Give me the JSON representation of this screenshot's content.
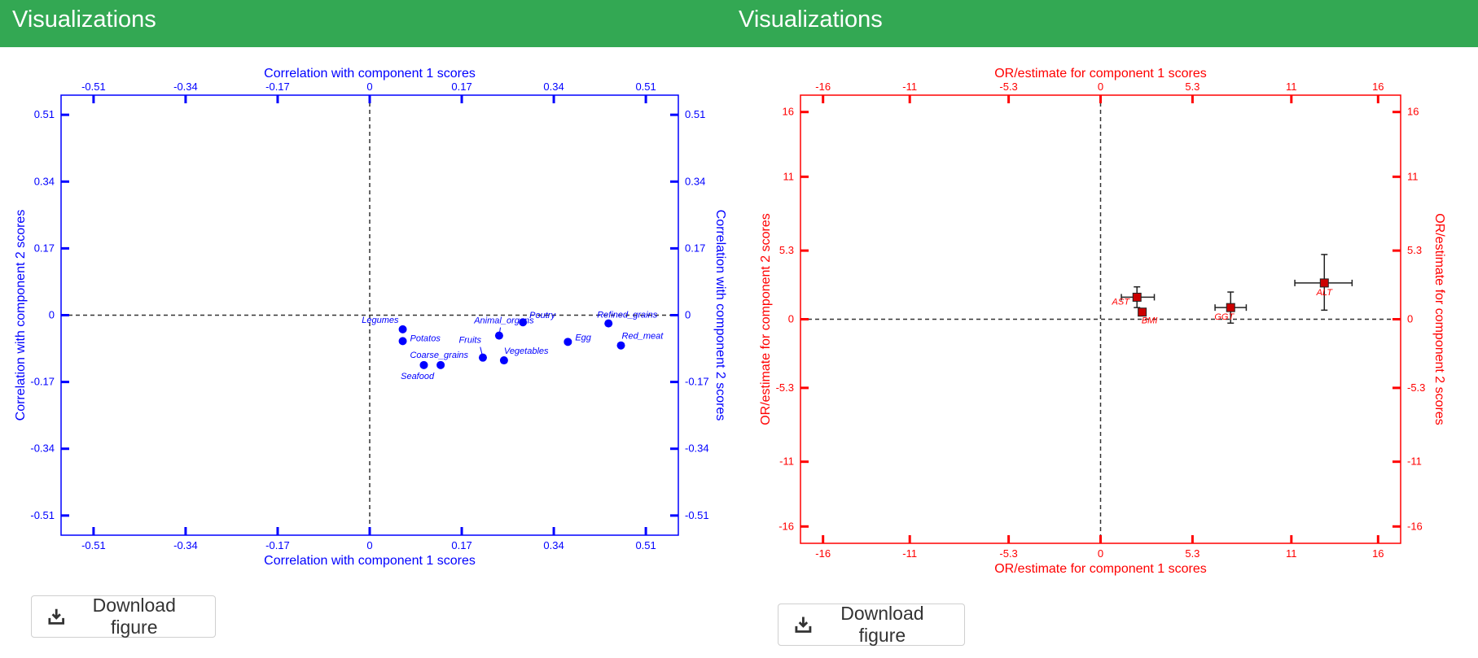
{
  "panels": {
    "left": {
      "header": "Visualizations",
      "download_label": "Download figure"
    },
    "right": {
      "header": "Visualizations",
      "download_label": "Download figure"
    }
  },
  "chart_data": [
    {
      "type": "scatter",
      "color": "#0000ff",
      "xlabel": "Correlation with component 1 scores",
      "ylabel": "Correlation with component 2 scores",
      "xlim": [
        -0.57,
        0.57
      ],
      "ylim": [
        -0.56,
        0.56
      ],
      "xticks": [
        -0.51,
        -0.34,
        -0.17,
        0,
        0.17,
        0.34,
        0.51
      ],
      "yticks": [
        -0.51,
        -0.34,
        -0.17,
        0,
        0.17,
        0.34,
        0.51
      ],
      "xtick_labels": [
        "-0.51",
        "-0.34",
        "-0.17",
        "0",
        "0.17",
        "0.34",
        "0.51"
      ],
      "ytick_labels": [
        "-0.51",
        "-0.34",
        "-0.17",
        "0",
        "0.17",
        "0.34",
        "0.51"
      ],
      "points": [
        {
          "label": "Legumes",
          "x": 0.061,
          "y": -0.036
        },
        {
          "label": "Potatos",
          "x": 0.061,
          "y": -0.066
        },
        {
          "label": "Coarse_grains",
          "x": 0.1,
          "y": -0.127
        },
        {
          "label": "Seafood",
          "x": 0.131,
          "y": -0.127
        },
        {
          "label": "Fruits",
          "x": 0.209,
          "y": -0.108
        },
        {
          "label": "Animal_organs",
          "x": 0.239,
          "y": -0.052
        },
        {
          "label": "Vegetables",
          "x": 0.248,
          "y": -0.115
        },
        {
          "label": "Poutry",
          "x": 0.283,
          "y": -0.018
        },
        {
          "label": "Egg",
          "x": 0.366,
          "y": -0.068
        },
        {
          "label": "Refined_grains",
          "x": 0.441,
          "y": -0.021
        },
        {
          "label": "Red_meat",
          "x": 0.464,
          "y": -0.077
        }
      ]
    },
    {
      "type": "scatter",
      "color": "#ff0000",
      "xlabel": "OR/estimate for component 1 scores",
      "ylabel": "OR/estimate for component 2 scores",
      "xlim": [
        -17.3,
        17.3
      ],
      "ylim": [
        -17.3,
        17.3
      ],
      "xticks": [
        -16,
        -11,
        -5.3,
        0,
        5.3,
        11,
        16
      ],
      "yticks": [
        -16,
        -11,
        -5.3,
        0,
        5.3,
        11,
        16
      ],
      "xtick_labels": [
        "-16",
        "-11",
        "-5.3",
        "0",
        "5.3",
        "11",
        "16"
      ],
      "ytick_labels": [
        "-16",
        "-11",
        "-5.3",
        "0",
        "5.3",
        "11",
        "16"
      ],
      "points": [
        {
          "label": "AST",
          "x": 2.1,
          "y": 1.7,
          "xerr": [
            0.9,
            1.0
          ],
          "yerr": [
            0.8,
            0.8
          ]
        },
        {
          "label": "BMI",
          "x": 2.4,
          "y": 0.55,
          "xerr": [
            0,
            0
          ],
          "yerr": [
            0,
            0
          ]
        },
        {
          "label": "GGT",
          "x": 7.5,
          "y": 0.9,
          "xerr": [
            0.9,
            0.9
          ],
          "yerr": [
            1.2,
            1.2
          ]
        },
        {
          "label": "ALT",
          "x": 12.9,
          "y": 2.8,
          "xerr": [
            1.7,
            1.6
          ],
          "yerr": [
            2.1,
            2.2
          ]
        }
      ]
    }
  ]
}
